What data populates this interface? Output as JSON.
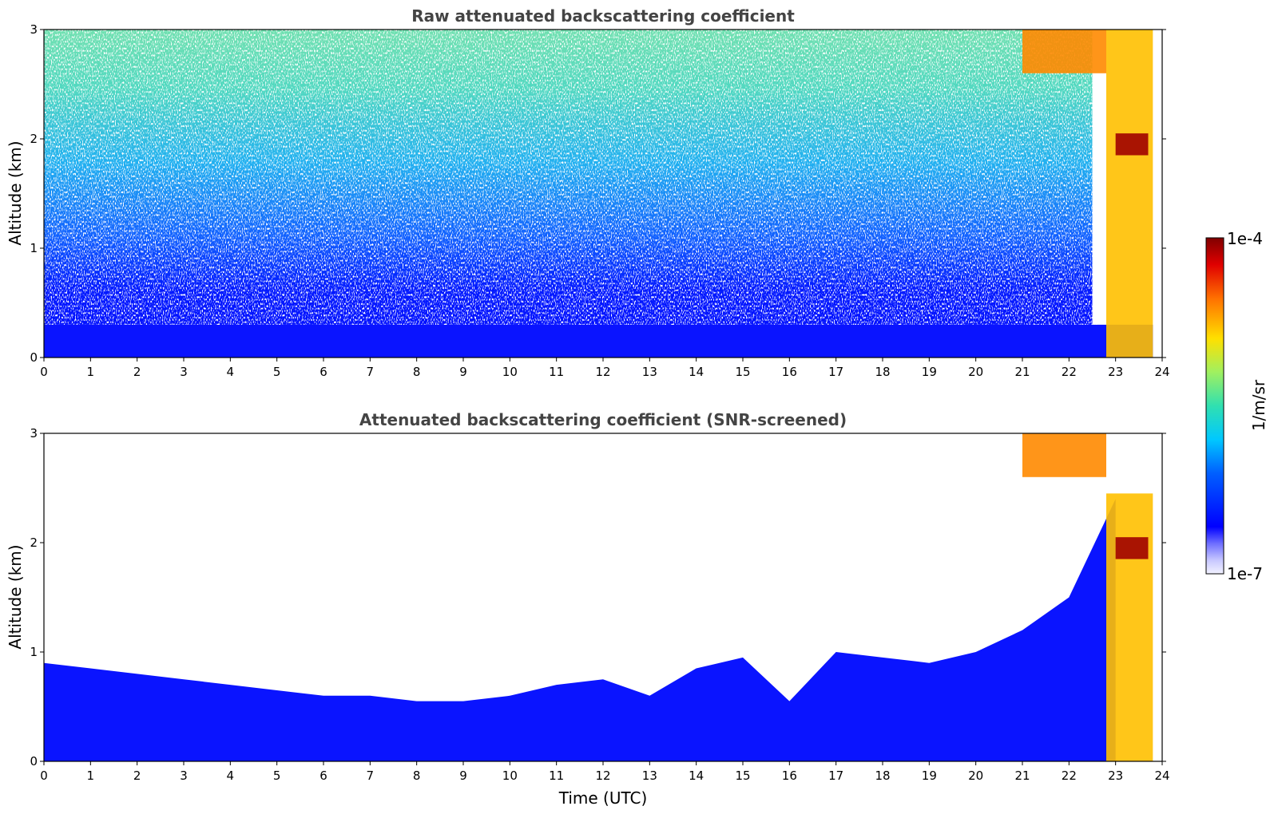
{
  "chart_data": [
    {
      "type": "heatmap",
      "title": "Raw attenuated backscattering coefficient",
      "xlabel": "",
      "ylabel": "Altitude (km)",
      "xlim": [
        0,
        24
      ],
      "ylim": [
        0,
        3
      ],
      "x_ticks": [
        "0",
        "1",
        "2",
        "3",
        "4",
        "5",
        "6",
        "7",
        "8",
        "9",
        "10",
        "11",
        "12",
        "13",
        "14",
        "15",
        "16",
        "17",
        "18",
        "19",
        "20",
        "21",
        "22",
        "23",
        "24"
      ],
      "y_ticks": [
        "0",
        "1",
        "2",
        "3"
      ],
      "z_range": [
        1e-07,
        0.0001
      ],
      "z_scale": "log",
      "grid": false,
      "features": [
        {
          "time": [
            0,
            23.8
          ],
          "altitude": [
            0,
            0.3
          ],
          "level": "blue"
        },
        {
          "time": [
            0,
            22.5
          ],
          "altitude": [
            0.3,
            3.0
          ],
          "level": "noisy blue-green"
        },
        {
          "time": [
            21.0,
            22.8
          ],
          "altitude": [
            2.6,
            3.0
          ],
          "level": "orange-red"
        },
        {
          "time": [
            22.8,
            23.8
          ],
          "altitude": [
            0,
            3.0
          ],
          "level": "yellow-orange"
        },
        {
          "time": [
            23.0,
            23.7
          ],
          "altitude": [
            1.85,
            2.05
          ],
          "level": "dark red"
        }
      ]
    },
    {
      "type": "heatmap",
      "title": "Attenuated backscattering coefficient (SNR-screened)",
      "xlabel": "Time (UTC)",
      "ylabel": "Altitude (km)",
      "xlim": [
        0,
        24
      ],
      "ylim": [
        0,
        3
      ],
      "x_ticks": [
        "0",
        "1",
        "2",
        "3",
        "4",
        "5",
        "6",
        "7",
        "8",
        "9",
        "10",
        "11",
        "12",
        "13",
        "14",
        "15",
        "16",
        "17",
        "18",
        "19",
        "20",
        "21",
        "22",
        "23",
        "24"
      ],
      "y_ticks": [
        "0",
        "1",
        "2",
        "3"
      ],
      "z_range": [
        1e-07,
        0.0001
      ],
      "z_scale": "log",
      "grid": false,
      "boundary_layer_top_km": [
        [
          0,
          0.9
        ],
        [
          1,
          0.85
        ],
        [
          2,
          0.8
        ],
        [
          3,
          0.75
        ],
        [
          4,
          0.7
        ],
        [
          5,
          0.65
        ],
        [
          6,
          0.6
        ],
        [
          7,
          0.6
        ],
        [
          8,
          0.55
        ],
        [
          9,
          0.55
        ],
        [
          10,
          0.6
        ],
        [
          11,
          0.7
        ],
        [
          12,
          0.75
        ],
        [
          13,
          0.6
        ],
        [
          14,
          0.85
        ],
        [
          15,
          0.95
        ],
        [
          16,
          0.55
        ],
        [
          17,
          1.0
        ],
        [
          18,
          0.95
        ],
        [
          19,
          0.9
        ],
        [
          20,
          1.0
        ],
        [
          21,
          1.2
        ],
        [
          22,
          1.5
        ],
        [
          23,
          2.4
        ]
      ],
      "features": [
        {
          "time": [
            0,
            23.8
          ],
          "altitude": [
            0,
            0.6
          ],
          "level": "blue"
        },
        {
          "time": [
            21.0,
            22.8
          ],
          "altitude": [
            2.6,
            3.0
          ],
          "level": "orange-red"
        },
        {
          "time": [
            22.8,
            23.8
          ],
          "altitude": [
            0,
            2.45
          ],
          "level": "yellow-orange"
        },
        {
          "time": [
            23.0,
            23.7
          ],
          "altitude": [
            1.85,
            2.05
          ],
          "level": "dark red"
        }
      ]
    }
  ],
  "colorbar": {
    "label": "1/m/sr",
    "max_label": "1e-4",
    "min_label": "1e-7"
  }
}
